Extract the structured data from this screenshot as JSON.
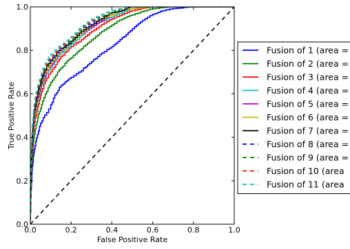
{
  "chart_data": {
    "type": "line",
    "xlabel": "False Positive Rate",
    "ylabel": "True Positive Rate",
    "xlim": [
      0.0,
      1.0
    ],
    "ylim": [
      0.0,
      1.0
    ],
    "xticks": [
      "0.0",
      "0.2",
      "0.4",
      "0.6",
      "0.8",
      "1.0"
    ],
    "yticks": [
      "0.0",
      "0.2",
      "0.4",
      "0.6",
      "0.8",
      "1.0"
    ],
    "grid": false,
    "legend_position": "right, outside plot area (clipped)",
    "series": [
      {
        "name": "Fusion of 1 (area =",
        "color": "#0000ff",
        "style": "solid",
        "x": [
          0,
          0.003,
          0.01,
          0.02,
          0.03,
          0.05,
          0.07,
          0.1,
          0.12,
          0.15,
          0.2,
          0.25,
          0.3,
          0.35,
          0.4,
          0.45,
          0.5,
          0.55,
          0.6,
          0.65,
          0.7,
          0.8,
          0.9,
          1.0
        ],
        "y": [
          0,
          0.12,
          0.25,
          0.33,
          0.38,
          0.45,
          0.49,
          0.53,
          0.58,
          0.63,
          0.67,
          0.7,
          0.74,
          0.78,
          0.81,
          0.85,
          0.89,
          0.93,
          0.96,
          0.98,
          0.99,
          1.0,
          1.0,
          1.0
        ]
      },
      {
        "name": "Fusion of 2 (area =",
        "color": "#008000",
        "style": "solid",
        "x": [
          0,
          0.005,
          0.01,
          0.02,
          0.04,
          0.06,
          0.08,
          0.1,
          0.15,
          0.2,
          0.25,
          0.3,
          0.35,
          0.4,
          0.45,
          0.5,
          0.6,
          0.7,
          0.8,
          1.0
        ],
        "y": [
          0,
          0.2,
          0.3,
          0.4,
          0.49,
          0.55,
          0.6,
          0.64,
          0.71,
          0.76,
          0.8,
          0.84,
          0.88,
          0.91,
          0.94,
          0.96,
          0.99,
          1.0,
          1.0,
          1.0
        ]
      },
      {
        "name": "Fusion of 3 (area =",
        "color": "#ff0000",
        "style": "solid",
        "x": [
          0,
          0.005,
          0.01,
          0.02,
          0.04,
          0.06,
          0.08,
          0.1,
          0.15,
          0.2,
          0.25,
          0.3,
          0.35,
          0.4,
          0.45,
          0.5,
          0.6,
          0.7,
          1.0
        ],
        "y": [
          0,
          0.24,
          0.34,
          0.45,
          0.54,
          0.61,
          0.66,
          0.69,
          0.76,
          0.81,
          0.84,
          0.88,
          0.91,
          0.94,
          0.96,
          0.98,
          1.0,
          1.0,
          1.0
        ]
      },
      {
        "name": "Fusion of 4 (area =",
        "color": "#00bfbf",
        "style": "solid",
        "x": [
          0,
          0.005,
          0.01,
          0.02,
          0.04,
          0.06,
          0.08,
          0.1,
          0.15,
          0.2,
          0.25,
          0.3,
          0.35,
          0.4,
          0.45,
          0.5,
          0.6,
          0.7,
          1.0
        ],
        "y": [
          0,
          0.26,
          0.37,
          0.48,
          0.57,
          0.64,
          0.68,
          0.71,
          0.78,
          0.82,
          0.86,
          0.9,
          0.93,
          0.95,
          0.97,
          0.99,
          1.0,
          1.0,
          1.0
        ]
      },
      {
        "name": "Fusion of 5 (area =",
        "color": "#bf00bf",
        "style": "solid",
        "x": [
          0,
          0.005,
          0.01,
          0.02,
          0.04,
          0.06,
          0.08,
          0.1,
          0.15,
          0.2,
          0.25,
          0.3,
          0.35,
          0.4,
          0.45,
          0.5,
          0.6,
          0.7,
          1.0
        ],
        "y": [
          0,
          0.27,
          0.38,
          0.49,
          0.58,
          0.65,
          0.69,
          0.72,
          0.79,
          0.83,
          0.87,
          0.9,
          0.93,
          0.96,
          0.98,
          0.99,
          1.0,
          1.0,
          1.0
        ]
      },
      {
        "name": "Fusion of 6 (area =",
        "color": "#bfbf00",
        "style": "solid",
        "x": [
          0,
          0.005,
          0.01,
          0.02,
          0.04,
          0.06,
          0.08,
          0.1,
          0.15,
          0.2,
          0.25,
          0.3,
          0.35,
          0.4,
          0.45,
          0.5,
          0.6,
          0.7,
          1.0
        ],
        "y": [
          0,
          0.28,
          0.39,
          0.5,
          0.59,
          0.66,
          0.7,
          0.73,
          0.79,
          0.83,
          0.87,
          0.91,
          0.94,
          0.96,
          0.98,
          0.99,
          1.0,
          1.0,
          1.0
        ]
      },
      {
        "name": "Fusion of 7 (area =",
        "color": "#000000",
        "style": "solid",
        "x": [
          0,
          0.005,
          0.01,
          0.02,
          0.04,
          0.06,
          0.08,
          0.1,
          0.15,
          0.2,
          0.25,
          0.3,
          0.35,
          0.4,
          0.45,
          0.5,
          0.6,
          0.7,
          1.0
        ],
        "y": [
          0,
          0.29,
          0.4,
          0.51,
          0.6,
          0.67,
          0.71,
          0.74,
          0.8,
          0.83,
          0.88,
          0.91,
          0.94,
          0.97,
          0.98,
          1.0,
          1.0,
          1.0,
          1.0
        ]
      },
      {
        "name": "Fusion of 8 (area =",
        "color": "#0000ff",
        "style": "dashed",
        "x": [
          0,
          0.005,
          0.01,
          0.02,
          0.04,
          0.06,
          0.08,
          0.1,
          0.15,
          0.2,
          0.25,
          0.3,
          0.35,
          0.4,
          0.45,
          0.5,
          0.6,
          0.7,
          1.0
        ],
        "y": [
          0,
          0.3,
          0.41,
          0.52,
          0.61,
          0.68,
          0.72,
          0.75,
          0.8,
          0.84,
          0.89,
          0.92,
          0.95,
          0.97,
          0.99,
          1.0,
          1.0,
          1.0,
          1.0
        ]
      },
      {
        "name": "Fusion of 9 (area =",
        "color": "#008000",
        "style": "dashed",
        "x": [
          0,
          0.005,
          0.01,
          0.02,
          0.04,
          0.06,
          0.08,
          0.1,
          0.15,
          0.2,
          0.25,
          0.3,
          0.35,
          0.4,
          0.45,
          0.5,
          0.6,
          0.7,
          1.0
        ],
        "y": [
          0,
          0.31,
          0.42,
          0.53,
          0.62,
          0.69,
          0.72,
          0.76,
          0.81,
          0.84,
          0.89,
          0.93,
          0.95,
          0.97,
          0.99,
          1.0,
          1.0,
          1.0,
          1.0
        ]
      },
      {
        "name": "Fusion of 10 (area",
        "color": "#ff0000",
        "style": "dashed",
        "x": [
          0,
          0.005,
          0.01,
          0.02,
          0.04,
          0.06,
          0.08,
          0.1,
          0.15,
          0.2,
          0.25,
          0.3,
          0.35,
          0.4,
          0.45,
          0.5,
          0.6,
          0.7,
          1.0
        ],
        "y": [
          0,
          0.32,
          0.43,
          0.54,
          0.63,
          0.69,
          0.73,
          0.76,
          0.81,
          0.85,
          0.9,
          0.93,
          0.96,
          0.98,
          0.99,
          1.0,
          1.0,
          1.0,
          1.0
        ]
      },
      {
        "name": "Fusion of 11 (area",
        "color": "#00bfbf",
        "style": "dashed",
        "x": [
          0,
          0.005,
          0.01,
          0.02,
          0.04,
          0.06,
          0.08,
          0.1,
          0.15,
          0.2,
          0.25,
          0.3,
          0.35,
          0.4,
          0.45,
          0.5,
          0.6,
          0.7,
          1.0
        ],
        "y": [
          0,
          0.33,
          0.44,
          0.55,
          0.64,
          0.7,
          0.74,
          0.77,
          0.82,
          0.85,
          0.9,
          0.94,
          0.96,
          0.98,
          0.99,
          1.0,
          1.0,
          1.0,
          1.0
        ]
      }
    ],
    "reference_line": {
      "x": [
        0,
        1
      ],
      "y": [
        0,
        1
      ],
      "color": "#000000",
      "style": "dashed"
    }
  }
}
